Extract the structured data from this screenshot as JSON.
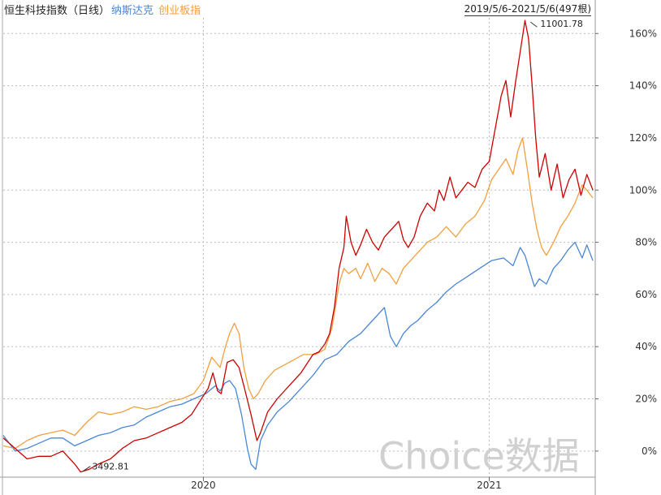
{
  "legend": {
    "main": "恒生科技指数（日线）",
    "s2": "纳斯达克",
    "s3": "创业板指"
  },
  "range_text": "2019/5/6-2021/5/6(497根)",
  "watermark": "Choice数据",
  "colors": {
    "hstech": "#cc0000",
    "nasdaq": "#4a86d8",
    "chinext": "#f0a040",
    "grid": "#bbbbbb",
    "legend_main": "#222222",
    "background": "#ffffff"
  },
  "chart_data": {
    "type": "line",
    "ylabel_unit": "%",
    "ylim": [
      -10,
      166
    ],
    "xlim": [
      0,
      497
    ],
    "y_ticks": [
      "160%",
      "140%",
      "120%",
      "100%",
      "80%",
      "60%",
      "40%",
      "20%",
      "0%"
    ],
    "y_tick_values": [
      160,
      140,
      120,
      100,
      80,
      60,
      40,
      20,
      0
    ],
    "x_ticks": [
      "2020",
      "2021"
    ],
    "x_tick_positions": [
      168,
      408
    ],
    "annotations": [
      {
        "text": "11001.78",
        "x": 440,
        "y": 165
      },
      {
        "text": "3492.81",
        "x": 65,
        "y": -8
      }
    ],
    "series": [
      {
        "name": "恒生科技指数（日线）",
        "key": "hstech",
        "points": [
          [
            0,
            5
          ],
          [
            10,
            1
          ],
          [
            20,
            -3
          ],
          [
            30,
            -2
          ],
          [
            40,
            -2
          ],
          [
            50,
            0
          ],
          [
            60,
            -5
          ],
          [
            65,
            -8
          ],
          [
            72,
            -7
          ],
          [
            80,
            -5
          ],
          [
            90,
            -3
          ],
          [
            100,
            1
          ],
          [
            110,
            4
          ],
          [
            120,
            5
          ],
          [
            130,
            7
          ],
          [
            140,
            9
          ],
          [
            150,
            11
          ],
          [
            158,
            14
          ],
          [
            165,
            19
          ],
          [
            172,
            24
          ],
          [
            176,
            30
          ],
          [
            180,
            23
          ],
          [
            183,
            22
          ],
          [
            188,
            34
          ],
          [
            193,
            35
          ],
          [
            198,
            32
          ],
          [
            202,
            25
          ],
          [
            208,
            14
          ],
          [
            213,
            4
          ],
          [
            216,
            7
          ],
          [
            222,
            15
          ],
          [
            230,
            20
          ],
          [
            240,
            25
          ],
          [
            250,
            30
          ],
          [
            260,
            37
          ],
          [
            265,
            38
          ],
          [
            270,
            41
          ],
          [
            274,
            45
          ],
          [
            278,
            55
          ],
          [
            282,
            70
          ],
          [
            286,
            78
          ],
          [
            288,
            90
          ],
          [
            292,
            80
          ],
          [
            296,
            75
          ],
          [
            300,
            79
          ],
          [
            305,
            85
          ],
          [
            310,
            80
          ],
          [
            315,
            77
          ],
          [
            320,
            82
          ],
          [
            326,
            85
          ],
          [
            332,
            88
          ],
          [
            336,
            81
          ],
          [
            340,
            78
          ],
          [
            345,
            82
          ],
          [
            350,
            90
          ],
          [
            356,
            95
          ],
          [
            362,
            92
          ],
          [
            366,
            100
          ],
          [
            370,
            96
          ],
          [
            375,
            105
          ],
          [
            380,
            97
          ],
          [
            385,
            100
          ],
          [
            390,
            103
          ],
          [
            396,
            101
          ],
          [
            402,
            108
          ],
          [
            408,
            111
          ],
          [
            414,
            126
          ],
          [
            418,
            136
          ],
          [
            422,
            142
          ],
          [
            426,
            128
          ],
          [
            430,
            141
          ],
          [
            434,
            153
          ],
          [
            438,
            165
          ],
          [
            441,
            158
          ],
          [
            444,
            140
          ],
          [
            447,
            120
          ],
          [
            450,
            105
          ],
          [
            455,
            114
          ],
          [
            460,
            100
          ],
          [
            465,
            110
          ],
          [
            470,
            97
          ],
          [
            475,
            104
          ],
          [
            480,
            108
          ],
          [
            485,
            98
          ],
          [
            490,
            106
          ],
          [
            495,
            100
          ]
        ]
      },
      {
        "name": "纳斯达克",
        "key": "nasdaq",
        "points": [
          [
            0,
            6
          ],
          [
            10,
            0
          ],
          [
            20,
            1
          ],
          [
            30,
            3
          ],
          [
            40,
            5
          ],
          [
            50,
            5
          ],
          [
            60,
            2
          ],
          [
            70,
            4
          ],
          [
            80,
            6
          ],
          [
            90,
            7
          ],
          [
            100,
            9
          ],
          [
            110,
            10
          ],
          [
            120,
            13
          ],
          [
            130,
            15
          ],
          [
            140,
            17
          ],
          [
            150,
            18
          ],
          [
            160,
            20
          ],
          [
            170,
            22
          ],
          [
            178,
            25
          ],
          [
            182,
            23
          ],
          [
            186,
            26
          ],
          [
            190,
            27
          ],
          [
            195,
            24
          ],
          [
            200,
            14
          ],
          [
            205,
            1
          ],
          [
            208,
            -5
          ],
          [
            212,
            -7
          ],
          [
            216,
            4
          ],
          [
            222,
            10
          ],
          [
            230,
            15
          ],
          [
            240,
            19
          ],
          [
            250,
            24
          ],
          [
            260,
            29
          ],
          [
            270,
            35
          ],
          [
            280,
            37
          ],
          [
            290,
            42
          ],
          [
            300,
            45
          ],
          [
            310,
            50
          ],
          [
            320,
            55
          ],
          [
            325,
            44
          ],
          [
            330,
            40
          ],
          [
            336,
            45
          ],
          [
            342,
            48
          ],
          [
            348,
            50
          ],
          [
            356,
            54
          ],
          [
            364,
            57
          ],
          [
            372,
            61
          ],
          [
            380,
            64
          ],
          [
            390,
            67
          ],
          [
            400,
            70
          ],
          [
            410,
            73
          ],
          [
            420,
            74
          ],
          [
            428,
            71
          ],
          [
            434,
            78
          ],
          [
            438,
            75
          ],
          [
            442,
            69
          ],
          [
            446,
            63
          ],
          [
            450,
            66
          ],
          [
            456,
            64
          ],
          [
            462,
            70
          ],
          [
            468,
            73
          ],
          [
            474,
            77
          ],
          [
            480,
            80
          ],
          [
            486,
            74
          ],
          [
            490,
            79
          ],
          [
            495,
            73
          ]
        ]
      },
      {
        "name": "创业板指",
        "key": "chinext",
        "points": [
          [
            0,
            2
          ],
          [
            10,
            1
          ],
          [
            20,
            4
          ],
          [
            30,
            6
          ],
          [
            40,
            7
          ],
          [
            50,
            8
          ],
          [
            60,
            6
          ],
          [
            70,
            11
          ],
          [
            80,
            15
          ],
          [
            90,
            14
          ],
          [
            100,
            15
          ],
          [
            110,
            17
          ],
          [
            120,
            16
          ],
          [
            130,
            17
          ],
          [
            140,
            19
          ],
          [
            150,
            20
          ],
          [
            160,
            22
          ],
          [
            168,
            27
          ],
          [
            175,
            36
          ],
          [
            182,
            32
          ],
          [
            186,
            39
          ],
          [
            190,
            45
          ],
          [
            194,
            49
          ],
          [
            198,
            45
          ],
          [
            202,
            32
          ],
          [
            206,
            24
          ],
          [
            210,
            20
          ],
          [
            214,
            22
          ],
          [
            220,
            27
          ],
          [
            228,
            31
          ],
          [
            236,
            33
          ],
          [
            244,
            35
          ],
          [
            252,
            37
          ],
          [
            262,
            37
          ],
          [
            270,
            39
          ],
          [
            276,
            47
          ],
          [
            282,
            64
          ],
          [
            286,
            70
          ],
          [
            290,
            68
          ],
          [
            296,
            70
          ],
          [
            300,
            66
          ],
          [
            306,
            72
          ],
          [
            312,
            65
          ],
          [
            318,
            70
          ],
          [
            324,
            68
          ],
          [
            330,
            64
          ],
          [
            336,
            70
          ],
          [
            342,
            73
          ],
          [
            348,
            76
          ],
          [
            356,
            80
          ],
          [
            364,
            82
          ],
          [
            372,
            86
          ],
          [
            380,
            82
          ],
          [
            388,
            87
          ],
          [
            396,
            90
          ],
          [
            404,
            96
          ],
          [
            410,
            104
          ],
          [
            416,
            108
          ],
          [
            422,
            112
          ],
          [
            428,
            106
          ],
          [
            432,
            115
          ],
          [
            436,
            120
          ],
          [
            440,
            108
          ],
          [
            444,
            95
          ],
          [
            448,
            85
          ],
          [
            452,
            78
          ],
          [
            456,
            75
          ],
          [
            462,
            80
          ],
          [
            468,
            86
          ],
          [
            474,
            90
          ],
          [
            480,
            95
          ],
          [
            486,
            102
          ],
          [
            490,
            100
          ],
          [
            495,
            97
          ]
        ]
      }
    ]
  }
}
